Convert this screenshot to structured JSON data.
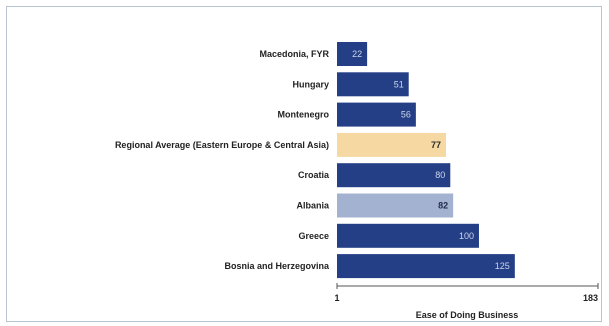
{
  "chart_data": {
    "type": "bar",
    "orientation": "horizontal",
    "categories": [
      "Macedonia, FYR",
      "Hungary",
      "Montenegro",
      "Regional Average (Eastern Europe & Central Asia)",
      "Croatia",
      "Albania",
      "Greece",
      "Bosnia and Herzegovina"
    ],
    "values": [
      22,
      51,
      56,
      77,
      80,
      82,
      100,
      125
    ],
    "bar_colors": [
      "#243f86",
      "#243f86",
      "#243f86",
      "#f6d9a2",
      "#243f86",
      "#a4b2d2",
      "#243f86",
      "#243f86"
    ],
    "value_label_colors": [
      "#cdd6ea",
      "#cdd6ea",
      "#cdd6ea",
      "#2a2a2a",
      "#cdd6ea",
      "#1f2a4a",
      "#cdd6ea",
      "#cdd6ea"
    ],
    "xlabel": "Ease of Doing Business",
    "xlim": [
      1,
      183
    ],
    "xticks": [
      "1",
      "183"
    ],
    "grid": false,
    "legend": "none"
  }
}
